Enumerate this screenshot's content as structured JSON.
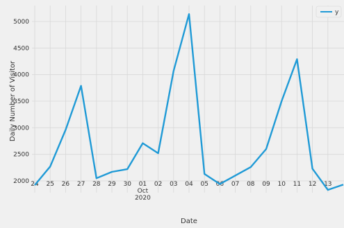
{
  "chart_data": {
    "type": "line",
    "xlabel": "Date",
    "ylabel": "Daily Number of Visitor",
    "x_tick_labels": [
      "24",
      "25",
      "26",
      "27",
      "28",
      "29",
      "30",
      "01",
      "02",
      "03",
      "04",
      "05",
      "06",
      "07",
      "08",
      "09",
      "10",
      "11",
      "12",
      "13"
    ],
    "x_month_label": "Oct",
    "x_year_label": "2020",
    "y_ticks": [
      2000,
      2500,
      3000,
      3500,
      4000,
      4500,
      5000
    ],
    "ylim": [
      1800,
      5200
    ],
    "grid": true,
    "legend": "top-right",
    "series": [
      {
        "name": "y",
        "color": "#1f9ad6",
        "x": [
          "2020-09-24",
          "2020-09-25",
          "2020-09-26",
          "2020-09-27",
          "2020-09-28",
          "2020-09-29",
          "2020-09-30",
          "2020-10-01",
          "2020-10-02",
          "2020-10-03",
          "2020-10-04",
          "2020-10-05",
          "2020-10-06",
          "2020-10-07",
          "2020-10-08",
          "2020-10-09",
          "2020-10-10",
          "2020-10-11",
          "2020-10-12",
          "2020-10-13",
          "2020-10-14"
        ],
        "values": [
          1920,
          2270,
          2960,
          3790,
          2050,
          2170,
          2220,
          2710,
          2520,
          4070,
          5140,
          2130,
          1940,
          2100,
          2260,
          2600,
          3500,
          4290,
          2230,
          1830,
          1930
        ]
      }
    ]
  }
}
